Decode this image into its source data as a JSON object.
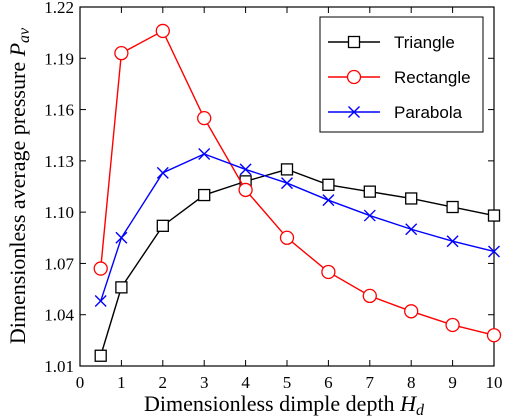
{
  "chart_data": {
    "type": "line",
    "xlabel": "Dimensionless dimple depth",
    "xlabel_symbol": "H",
    "xlabel_subscript": "d",
    "ylabel": "Dimensionless average pressure",
    "ylabel_symbol": "P",
    "ylabel_subscript": "av",
    "xlim": [
      0,
      10
    ],
    "ylim": [
      1.01,
      1.22
    ],
    "xticks": [
      "0",
      "1",
      "2",
      "3",
      "4",
      "5",
      "6",
      "7",
      "8",
      "9",
      "10"
    ],
    "yticks": [
      "1.01",
      "1.04",
      "1.07",
      "1.10",
      "1.13",
      "1.16",
      "1.19",
      "1.22"
    ],
    "grid": false,
    "legend_position": "top-right",
    "x": [
      0.5,
      1,
      2,
      3,
      4,
      5,
      6,
      7,
      8,
      9,
      10
    ],
    "series": [
      {
        "name": "Triangle",
        "color": "#000000",
        "marker": "square",
        "values": [
          1.016,
          1.056,
          1.092,
          1.11,
          1.118,
          1.125,
          1.116,
          1.112,
          1.108,
          1.103,
          1.098
        ]
      },
      {
        "name": "Rectangle",
        "color": "#ff0000",
        "marker": "circle",
        "values": [
          1.067,
          1.193,
          1.206,
          1.155,
          1.113,
          1.085,
          1.065,
          1.051,
          1.042,
          1.034,
          1.028
        ]
      },
      {
        "name": "Parabola",
        "color": "#0000ff",
        "marker": "x",
        "values": [
          1.048,
          1.085,
          1.123,
          1.134,
          1.125,
          1.117,
          1.107,
          1.098,
          1.09,
          1.083,
          1.077
        ]
      }
    ]
  }
}
